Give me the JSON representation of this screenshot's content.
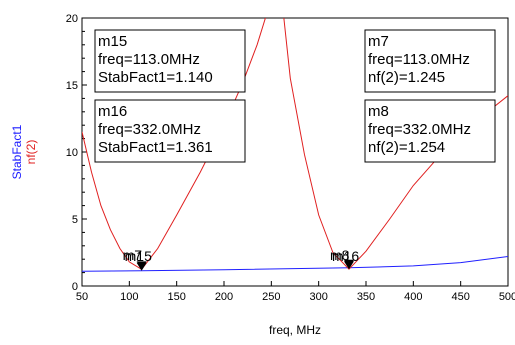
{
  "chart_data": {
    "type": "line",
    "xlabel": "freq, MHz",
    "ylabel_left": [
      "StabFact1",
      "nf(2)"
    ],
    "xlim": [
      50,
      500
    ],
    "ylim": [
      0,
      20
    ],
    "x_ticks": [
      50,
      100,
      150,
      200,
      250,
      300,
      350,
      400,
      450,
      500
    ],
    "y_ticks": [
      0,
      5,
      10,
      15,
      20
    ],
    "colors": {
      "stabfact": "#2020ff",
      "nf": "#e02020",
      "ylabel_stab": "#1a1aff",
      "ylabel_nf": "#e02020"
    },
    "series": [
      {
        "key": "stabfact",
        "x": [
          50,
          113,
          200,
          332,
          400,
          450,
          500
        ],
        "y": [
          1.1,
          1.14,
          1.22,
          1.361,
          1.5,
          1.75,
          2.2
        ]
      },
      {
        "key": "nf",
        "x": [
          50,
          60,
          70,
          80,
          90,
          100,
          113,
          130,
          150,
          175,
          200,
          220,
          235,
          246,
          250,
          262,
          270,
          285,
          300,
          315,
          332,
          350,
          375,
          400,
          425,
          450,
          475,
          500
        ],
        "y": [
          11.5,
          8.5,
          6.0,
          4.2,
          2.8,
          1.8,
          1.245,
          2.8,
          5.3,
          8.5,
          12.0,
          15.2,
          18.0,
          20.5,
          22,
          20.8,
          15.5,
          9.8,
          5.3,
          2.5,
          1.254,
          2.6,
          5.0,
          7.5,
          9.5,
          11.3,
          12.8,
          14.2
        ]
      }
    ],
    "markers": [
      {
        "id": "m15",
        "x": 113,
        "y": 1.14,
        "lines": [
          "m15",
          "freq=113.0MHz",
          "StabFact1=1.140"
        ]
      },
      {
        "id": "m16",
        "x": 332,
        "y": 1.361,
        "lines": [
          "m16",
          "freq=332.0MHz",
          "StabFact1=1.361"
        ]
      },
      {
        "id": "m7",
        "x": 113,
        "y": 1.245,
        "lines": [
          "m7",
          "freq=113.0MHz",
          "nf(2)=1.245"
        ]
      },
      {
        "id": "m8",
        "x": 332,
        "y": 1.254,
        "lines": [
          "m8",
          "freq=332.0MHz",
          "nf(2)=1.254"
        ]
      }
    ],
    "marker_labels": [
      {
        "text": "m7",
        "x": 113
      },
      {
        "text": "m15",
        "x": 113
      },
      {
        "text": "m8",
        "x": 332
      },
      {
        "text": "m16",
        "x": 332
      }
    ]
  }
}
